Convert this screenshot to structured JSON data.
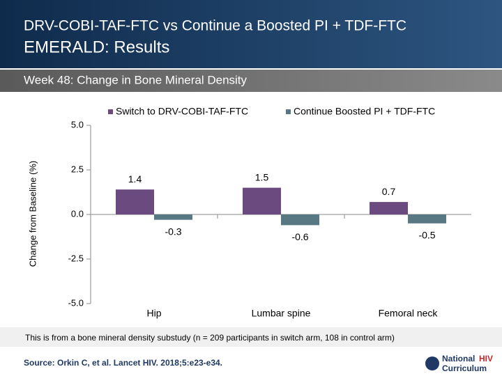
{
  "header": {
    "title": "DRV-COBI-TAF-FTC vs Continue a Boosted PI + TDF-FTC",
    "subtitle": "EMERALD: Results"
  },
  "section": "Week 48: Change in Bone Mineral Density",
  "chart_data": {
    "type": "bar",
    "y_label": "Change from Baseline (%)",
    "categories": [
      "Hip",
      "Lumbar spine",
      "Femoral neck"
    ],
    "series": [
      {
        "name": "Switch to DRV-COBI-TAF-FTC",
        "color": "#6b4a80",
        "values": [
          1.4,
          1.5,
          0.7
        ]
      },
      {
        "name": "Continue Boosted PI + TDF-FTC",
        "color": "#587884",
        "values": [
          -0.3,
          -0.6,
          -0.5
        ]
      }
    ],
    "ylim": [
      -5,
      5
    ],
    "yticks": [
      {
        "value": -5,
        "label": "-5.0"
      },
      {
        "value": -2.5,
        "label": "-2.5"
      },
      {
        "value": 0,
        "label": "0.0"
      },
      2.5,
      {
        "value": 5,
        "label": "5.0"
      }
    ],
    "grid": false,
    "legend": "top"
  },
  "footnote": "This is from a bone mineral density substudy (n = 209 participants in switch arm, 108 in control arm)",
  "source": "Source: Orkin C, et al. Lancet HIV. 2018;5:e23-e34.",
  "logo": {
    "national": "National",
    "hiv": "HIV",
    "curriculum": "Curriculum"
  }
}
